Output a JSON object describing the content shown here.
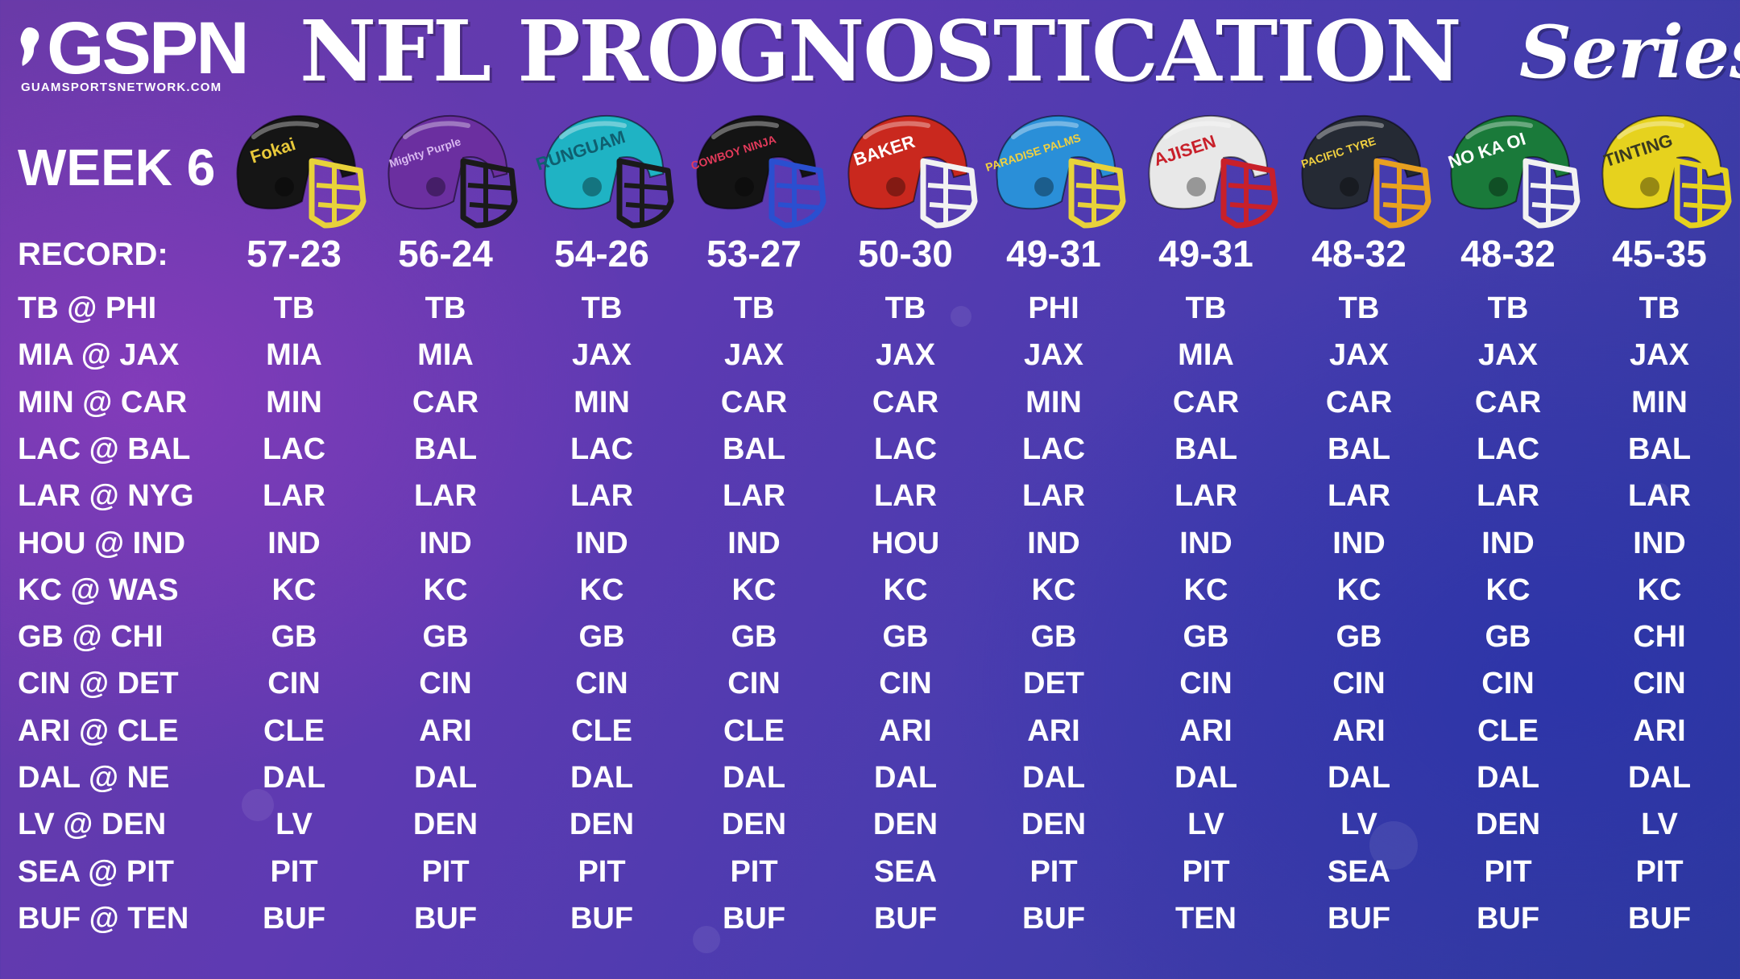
{
  "header": {
    "logo_text": "GSPN",
    "logo_url": "GUAMSPORTSNETWORK.COM",
    "title": "NFL PROGNOSTICATION",
    "title_script": "Series"
  },
  "week_label": "WEEK 6",
  "record_label": "RECORD:",
  "prognosticators": [
    {
      "sponsor": "Fokai",
      "record": "57-23",
      "shell": "#151515",
      "mask": "#e8d23a",
      "text": "#e8c93a",
      "picks": [
        "TB",
        "MIA",
        "MIN",
        "LAC",
        "LAR",
        "IND",
        "KC",
        "GB",
        "CIN",
        "CLE",
        "DAL",
        "LV",
        "PIT",
        "BUF"
      ]
    },
    {
      "sponsor": "Mighty Purple",
      "record": "56-24",
      "shell": "#6b2fa0",
      "mask": "#1a1a1a",
      "text": "#d8b8f0",
      "picks": [
        "TB",
        "MIA",
        "CAR",
        "BAL",
        "LAR",
        "IND",
        "KC",
        "GB",
        "CIN",
        "ARI",
        "DAL",
        "DEN",
        "PIT",
        "BUF"
      ]
    },
    {
      "sponsor": "RUNGUAM",
      "record": "54-26",
      "shell": "#1fb3c4",
      "mask": "#1a1a1a",
      "text": "#0f5f70",
      "picks": [
        "TB",
        "JAX",
        "MIN",
        "LAC",
        "LAR",
        "IND",
        "KC",
        "GB",
        "CIN",
        "CLE",
        "DAL",
        "DEN",
        "PIT",
        "BUF"
      ]
    },
    {
      "sponsor": "COWBOY NINJA",
      "record": "53-27",
      "shell": "#141414",
      "mask": "#2a4fd0",
      "text": "#e23a5a",
      "picks": [
        "TB",
        "JAX",
        "CAR",
        "BAL",
        "LAR",
        "IND",
        "KC",
        "GB",
        "CIN",
        "CLE",
        "DAL",
        "DEN",
        "PIT",
        "BUF"
      ]
    },
    {
      "sponsor": "BAKER",
      "record": "50-30",
      "shell": "#c9281e",
      "mask": "#f2f2f2",
      "text": "#ffffff",
      "picks": [
        "TB",
        "JAX",
        "CAR",
        "LAC",
        "LAR",
        "HOU",
        "KC",
        "GB",
        "CIN",
        "ARI",
        "DAL",
        "DEN",
        "SEA",
        "BUF"
      ]
    },
    {
      "sponsor": "PARADISE PALMS",
      "record": "49-31",
      "shell": "#2a8fd8",
      "mask": "#e8d23a",
      "text": "#f0d040",
      "picks": [
        "PHI",
        "JAX",
        "MIN",
        "LAC",
        "LAR",
        "IND",
        "KC",
        "GB",
        "DET",
        "ARI",
        "DAL",
        "DEN",
        "PIT",
        "BUF"
      ]
    },
    {
      "sponsor": "AJISEN",
      "record": "49-31",
      "shell": "#e8e8e8",
      "mask": "#c8202a",
      "text": "#c8202a",
      "picks": [
        "TB",
        "MIA",
        "CAR",
        "BAL",
        "LAR",
        "IND",
        "KC",
        "GB",
        "CIN",
        "ARI",
        "DAL",
        "LV",
        "PIT",
        "TEN"
      ]
    },
    {
      "sponsor": "PACIFIC TYRE",
      "record": "48-32",
      "shell": "#252a34",
      "mask": "#e8a020",
      "text": "#f0d040",
      "picks": [
        "TB",
        "JAX",
        "CAR",
        "BAL",
        "LAR",
        "IND",
        "KC",
        "GB",
        "CIN",
        "ARI",
        "DAL",
        "LV",
        "SEA",
        "BUF"
      ]
    },
    {
      "sponsor": "NO KA OI",
      "record": "48-32",
      "shell": "#1a7a3a",
      "mask": "#f2f2f2",
      "text": "#ffffff",
      "picks": [
        "TB",
        "JAX",
        "CAR",
        "LAC",
        "LAR",
        "IND",
        "KC",
        "GB",
        "CIN",
        "CLE",
        "DAL",
        "DEN",
        "PIT",
        "BUF"
      ]
    },
    {
      "sponsor": "TINTING",
      "record": "45-35",
      "shell": "#e6d21e",
      "mask": "#e6d21e",
      "text": "#3a3a20",
      "picks": [
        "TB",
        "JAX",
        "MIN",
        "BAL",
        "LAR",
        "IND",
        "KC",
        "CHI",
        "CIN",
        "ARI",
        "DAL",
        "LV",
        "PIT",
        "BUF"
      ]
    }
  ],
  "games": [
    "TB @ PHI",
    "MIA @ JAX",
    "MIN @ CAR",
    "LAC @ BAL",
    "LAR @ NYG",
    "HOU @ IND",
    "KC @ WAS",
    "GB @ CHI",
    "CIN @ DET",
    "ARI @ CLE",
    "DAL @ NE",
    "LV @ DEN",
    "SEA @ PIT",
    "BUF @ TEN"
  ]
}
